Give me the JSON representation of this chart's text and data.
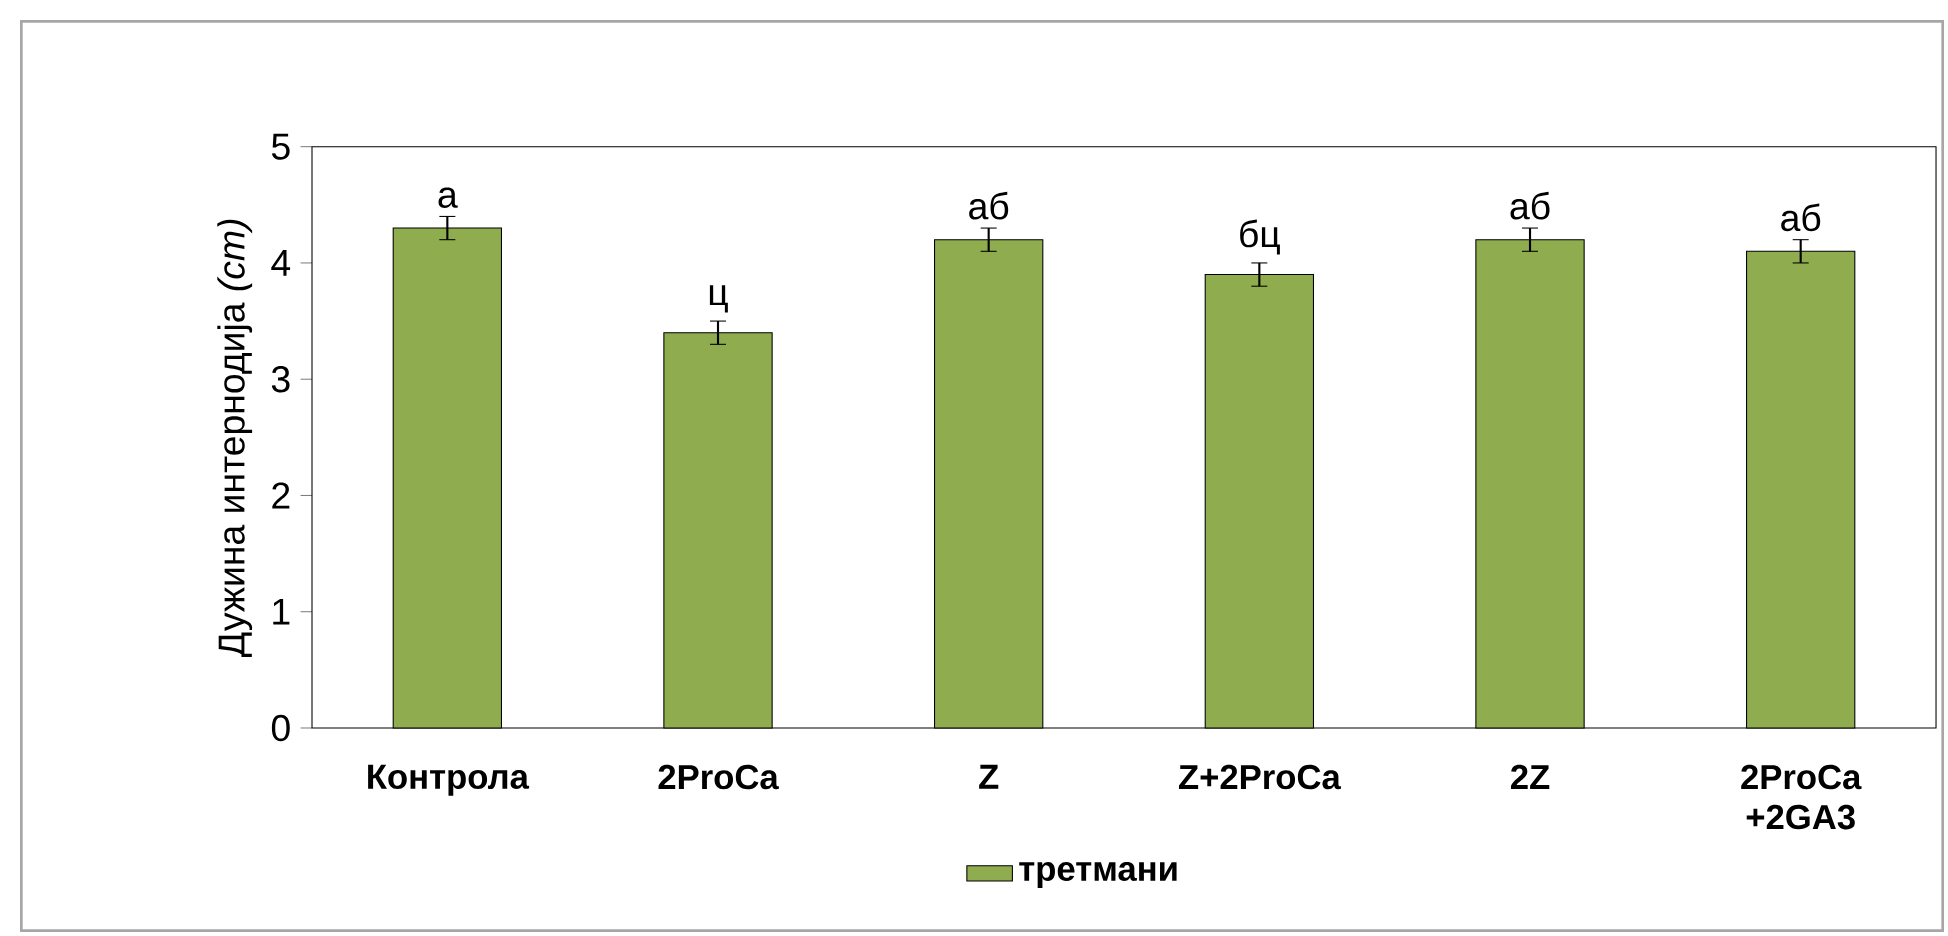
{
  "chart_data": {
    "type": "bar",
    "ylabel": "Дужина интернодија *(cm)*",
    "categories": [
      "Контрола",
      "2ProCa",
      "Z",
      "Z+2ProCa",
      "2Z",
      "2ProCa +2GA3"
    ],
    "series": [
      {
        "name": "третмани",
        "color": "#8fad4f",
        "values": [
          4.3,
          3.4,
          4.2,
          3.9,
          4.2,
          4.1
        ],
        "errors": [
          0.1,
          0.1,
          0.1,
          0.1,
          0.1,
          0.1
        ]
      }
    ],
    "ylim": [
      0,
      5
    ],
    "yticks": [
      0,
      1,
      2,
      3,
      4,
      5
    ],
    "grid": false,
    "legend": "bottom",
    "annotations": [
      {
        "text": "а",
        "x": "Контрола",
        "y": 4.4
      },
      {
        "text": "ц",
        "x": "2ProCa",
        "y": 3.5
      },
      {
        "text": "аб",
        "x": "Z",
        "y": 4.3
      },
      {
        "text": "бц",
        "x": "Z+2ProCa",
        "y": 4.0
      },
      {
        "text": "аб",
        "x": "2Z",
        "y": 4.3
      },
      {
        "text": "аб",
        "x": "2ProCa +2GA3",
        "y": 4.2
      }
    ]
  }
}
